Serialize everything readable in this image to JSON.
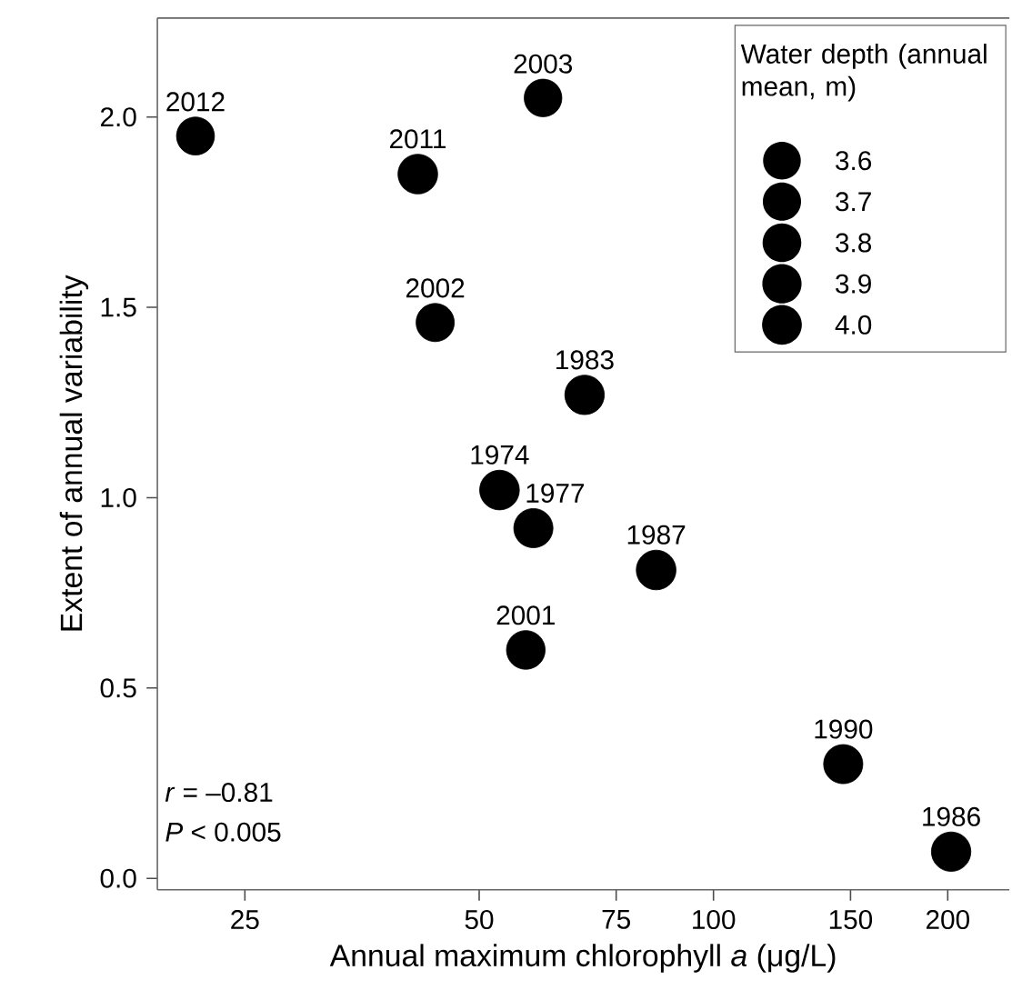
{
  "chart_data": {
    "type": "bubble",
    "xlabel": "Annual maximum chlorophyll *a* (μg/L)",
    "ylabel": "Extent of annual variability",
    "legend_title": "Water depth (annual mean, m)",
    "x": [
      21.6,
      41.7,
      43.9,
      60.4,
      68.3,
      53.1,
      58.7,
      84.4,
      57.4,
      146.8,
      202
    ],
    "values": [
      1.95,
      1.85,
      1.46,
      2.05,
      1.27,
      1.02,
      0.92,
      0.81,
      0.6,
      0.3,
      0.07
    ],
    "sizes": [
      3.65,
      4.0,
      3.7,
      3.6,
      3.95,
      4.0,
      3.9,
      4.0,
      3.8,
      3.9,
      3.95
    ],
    "size_legend": [
      {
        "value": 3.6,
        "label": "3.6"
      },
      {
        "value": 3.7,
        "label": "3.7"
      },
      {
        "value": 3.8,
        "label": "3.8"
      },
      {
        "value": 3.9,
        "label": "3.9"
      },
      {
        "value": 4.0,
        "label": "4.0"
      }
    ],
    "color": "#000000",
    "log": "x",
    "xlim": [
      19.3,
      240
    ],
    "ylim": [
      -0.03,
      2.26
    ],
    "xticks": [
      25,
      50,
      75,
      100,
      150,
      200
    ],
    "yticks": [
      {
        "value": 0,
        "label": "0.0"
      },
      {
        "value": 0.5,
        "label": "0.5"
      },
      {
        "value": 1,
        "label": "1.0"
      },
      {
        "value": 1.5,
        "label": "1.5"
      },
      {
        "value": 2,
        "label": "2.0"
      }
    ],
    "grid": false,
    "annotations": [
      {
        "text": "2012",
        "x": 21.6,
        "y": 1.95
      },
      {
        "text": "2011",
        "x": 41.7,
        "y": 1.85
      },
      {
        "text": "2002",
        "x": 43.9,
        "y": 1.46
      },
      {
        "text": "2003",
        "x": 60.4,
        "y": 2.05
      },
      {
        "text": "1983",
        "x": 68.3,
        "y": 1.27
      },
      {
        "text": "1974",
        "x": 53.1,
        "y": 1.02
      },
      {
        "text": "1977",
        "x": 58.7,
        "y": 0.92
      },
      {
        "text": "1987",
        "x": 84.4,
        "y": 0.81
      },
      {
        "text": "2001",
        "x": 57.4,
        "y": 0.6
      },
      {
        "text": "1990",
        "x": 146.8,
        "y": 0.3
      },
      {
        "text": "1986",
        "x": 202,
        "y": 0.07
      },
      "*r* = –0.81",
      "*P* < 0.005"
    ]
  }
}
